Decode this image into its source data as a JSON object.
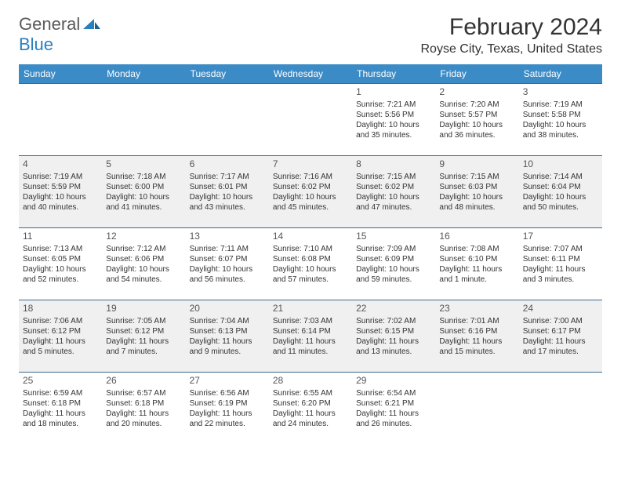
{
  "logo": {
    "part1": "General",
    "part2": "Blue"
  },
  "title": "February 2024",
  "location": "Royse City, Texas, United States",
  "colors": {
    "header_bg": "#3b8bc7",
    "header_text": "#ffffff",
    "row_border": "#3b6a8f",
    "alt_row_bg": "#f0f0f0",
    "logo_gray": "#5a5a5a",
    "logo_blue": "#2a7fbf"
  },
  "weekdays": [
    "Sunday",
    "Monday",
    "Tuesday",
    "Wednesday",
    "Thursday",
    "Friday",
    "Saturday"
  ],
  "weeks": [
    [
      null,
      null,
      null,
      null,
      {
        "n": "1",
        "sr": "Sunrise: 7:21 AM",
        "ss": "Sunset: 5:56 PM",
        "d1": "Daylight: 10 hours",
        "d2": "and 35 minutes."
      },
      {
        "n": "2",
        "sr": "Sunrise: 7:20 AM",
        "ss": "Sunset: 5:57 PM",
        "d1": "Daylight: 10 hours",
        "d2": "and 36 minutes."
      },
      {
        "n": "3",
        "sr": "Sunrise: 7:19 AM",
        "ss": "Sunset: 5:58 PM",
        "d1": "Daylight: 10 hours",
        "d2": "and 38 minutes."
      }
    ],
    [
      {
        "n": "4",
        "sr": "Sunrise: 7:19 AM",
        "ss": "Sunset: 5:59 PM",
        "d1": "Daylight: 10 hours",
        "d2": "and 40 minutes."
      },
      {
        "n": "5",
        "sr": "Sunrise: 7:18 AM",
        "ss": "Sunset: 6:00 PM",
        "d1": "Daylight: 10 hours",
        "d2": "and 41 minutes."
      },
      {
        "n": "6",
        "sr": "Sunrise: 7:17 AM",
        "ss": "Sunset: 6:01 PM",
        "d1": "Daylight: 10 hours",
        "d2": "and 43 minutes."
      },
      {
        "n": "7",
        "sr": "Sunrise: 7:16 AM",
        "ss": "Sunset: 6:02 PM",
        "d1": "Daylight: 10 hours",
        "d2": "and 45 minutes."
      },
      {
        "n": "8",
        "sr": "Sunrise: 7:15 AM",
        "ss": "Sunset: 6:02 PM",
        "d1": "Daylight: 10 hours",
        "d2": "and 47 minutes."
      },
      {
        "n": "9",
        "sr": "Sunrise: 7:15 AM",
        "ss": "Sunset: 6:03 PM",
        "d1": "Daylight: 10 hours",
        "d2": "and 48 minutes."
      },
      {
        "n": "10",
        "sr": "Sunrise: 7:14 AM",
        "ss": "Sunset: 6:04 PM",
        "d1": "Daylight: 10 hours",
        "d2": "and 50 minutes."
      }
    ],
    [
      {
        "n": "11",
        "sr": "Sunrise: 7:13 AM",
        "ss": "Sunset: 6:05 PM",
        "d1": "Daylight: 10 hours",
        "d2": "and 52 minutes."
      },
      {
        "n": "12",
        "sr": "Sunrise: 7:12 AM",
        "ss": "Sunset: 6:06 PM",
        "d1": "Daylight: 10 hours",
        "d2": "and 54 minutes."
      },
      {
        "n": "13",
        "sr": "Sunrise: 7:11 AM",
        "ss": "Sunset: 6:07 PM",
        "d1": "Daylight: 10 hours",
        "d2": "and 56 minutes."
      },
      {
        "n": "14",
        "sr": "Sunrise: 7:10 AM",
        "ss": "Sunset: 6:08 PM",
        "d1": "Daylight: 10 hours",
        "d2": "and 57 minutes."
      },
      {
        "n": "15",
        "sr": "Sunrise: 7:09 AM",
        "ss": "Sunset: 6:09 PM",
        "d1": "Daylight: 10 hours",
        "d2": "and 59 minutes."
      },
      {
        "n": "16",
        "sr": "Sunrise: 7:08 AM",
        "ss": "Sunset: 6:10 PM",
        "d1": "Daylight: 11 hours",
        "d2": "and 1 minute."
      },
      {
        "n": "17",
        "sr": "Sunrise: 7:07 AM",
        "ss": "Sunset: 6:11 PM",
        "d1": "Daylight: 11 hours",
        "d2": "and 3 minutes."
      }
    ],
    [
      {
        "n": "18",
        "sr": "Sunrise: 7:06 AM",
        "ss": "Sunset: 6:12 PM",
        "d1": "Daylight: 11 hours",
        "d2": "and 5 minutes."
      },
      {
        "n": "19",
        "sr": "Sunrise: 7:05 AM",
        "ss": "Sunset: 6:12 PM",
        "d1": "Daylight: 11 hours",
        "d2": "and 7 minutes."
      },
      {
        "n": "20",
        "sr": "Sunrise: 7:04 AM",
        "ss": "Sunset: 6:13 PM",
        "d1": "Daylight: 11 hours",
        "d2": "and 9 minutes."
      },
      {
        "n": "21",
        "sr": "Sunrise: 7:03 AM",
        "ss": "Sunset: 6:14 PM",
        "d1": "Daylight: 11 hours",
        "d2": "and 11 minutes."
      },
      {
        "n": "22",
        "sr": "Sunrise: 7:02 AM",
        "ss": "Sunset: 6:15 PM",
        "d1": "Daylight: 11 hours",
        "d2": "and 13 minutes."
      },
      {
        "n": "23",
        "sr": "Sunrise: 7:01 AM",
        "ss": "Sunset: 6:16 PM",
        "d1": "Daylight: 11 hours",
        "d2": "and 15 minutes."
      },
      {
        "n": "24",
        "sr": "Sunrise: 7:00 AM",
        "ss": "Sunset: 6:17 PM",
        "d1": "Daylight: 11 hours",
        "d2": "and 17 minutes."
      }
    ],
    [
      {
        "n": "25",
        "sr": "Sunrise: 6:59 AM",
        "ss": "Sunset: 6:18 PM",
        "d1": "Daylight: 11 hours",
        "d2": "and 18 minutes."
      },
      {
        "n": "26",
        "sr": "Sunrise: 6:57 AM",
        "ss": "Sunset: 6:18 PM",
        "d1": "Daylight: 11 hours",
        "d2": "and 20 minutes."
      },
      {
        "n": "27",
        "sr": "Sunrise: 6:56 AM",
        "ss": "Sunset: 6:19 PM",
        "d1": "Daylight: 11 hours",
        "d2": "and 22 minutes."
      },
      {
        "n": "28",
        "sr": "Sunrise: 6:55 AM",
        "ss": "Sunset: 6:20 PM",
        "d1": "Daylight: 11 hours",
        "d2": "and 24 minutes."
      },
      {
        "n": "29",
        "sr": "Sunrise: 6:54 AM",
        "ss": "Sunset: 6:21 PM",
        "d1": "Daylight: 11 hours",
        "d2": "and 26 minutes."
      },
      null,
      null
    ]
  ]
}
